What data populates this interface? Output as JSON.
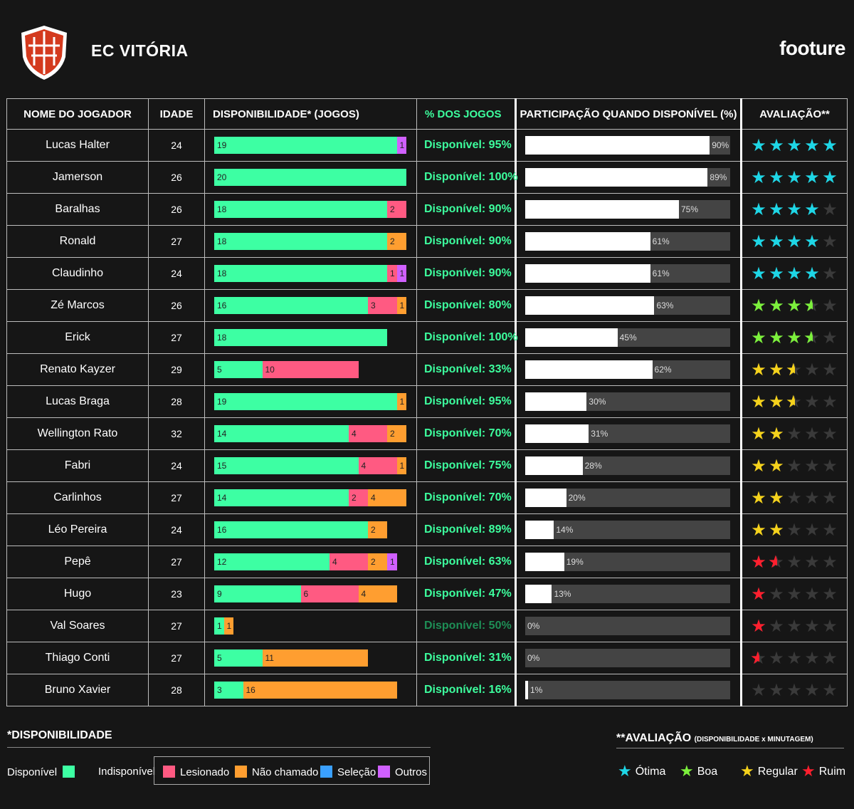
{
  "header": {
    "team": "EC VITÓRIA",
    "brand": "footure"
  },
  "columns": [
    "NOME DO JOGADOR",
    "IDADE",
    "DISPONIBILIDADE* (JOGOS)",
    "% DOS JOGOS",
    "PARTICIPAÇÃO QUANDO DISPONÍVEL (%)",
    "AVALIAÇÃO**"
  ],
  "colors": {
    "available": "#3dffa3",
    "injured": "#ff5a82",
    "not_called": "#ff9e30",
    "national_team": "#3aa0ff",
    "other": "#d060ff",
    "pct_high": "#3dff9e",
    "pct_low": "#1e8f56",
    "star_otima": "#1ed6e6",
    "star_boa": "#7cf03c",
    "star_regular": "#f5d21c",
    "star_ruim": "#ff1f2e",
    "star_empty": "#3a3a3a"
  },
  "chart_data": {
    "type": "table",
    "max_games": 20,
    "players": [
      {
        "name": "Lucas Halter",
        "age": "24",
        "segments": [
          {
            "type": "available",
            "value": 19
          },
          {
            "type": "other",
            "value": 1
          }
        ],
        "pct_label": "Disponível: 95%",
        "participation": 90,
        "participation_label": "90%",
        "rating": 5,
        "rating_class": "otima"
      },
      {
        "name": "Jamerson",
        "age": "26",
        "segments": [
          {
            "type": "available",
            "value": 20
          }
        ],
        "pct_label": "Disponível: 100%",
        "participation": 89,
        "participation_label": "89%",
        "rating": 5,
        "rating_class": "otima"
      },
      {
        "name": "Baralhas",
        "age": "26",
        "segments": [
          {
            "type": "available",
            "value": 18
          },
          {
            "type": "injured",
            "value": 2
          }
        ],
        "pct_label": "Disponível: 90%",
        "participation": 75,
        "participation_label": "75%",
        "rating": 4,
        "rating_class": "otima"
      },
      {
        "name": "Ronald",
        "age": "27",
        "segments": [
          {
            "type": "available",
            "value": 18
          },
          {
            "type": "not_called",
            "value": 2
          }
        ],
        "pct_label": "Disponível: 90%",
        "participation": 61,
        "participation_label": "61%",
        "rating": 4,
        "rating_class": "otima"
      },
      {
        "name": "Claudinho",
        "age": "24",
        "segments": [
          {
            "type": "available",
            "value": 18
          },
          {
            "type": "injured",
            "value": 1
          },
          {
            "type": "other",
            "value": 1
          }
        ],
        "pct_label": "Disponível: 90%",
        "participation": 61,
        "participation_label": "61%",
        "rating": 4,
        "rating_class": "otima"
      },
      {
        "name": "Zé Marcos",
        "age": "26",
        "segments": [
          {
            "type": "available",
            "value": 16
          },
          {
            "type": "injured",
            "value": 3
          },
          {
            "type": "not_called",
            "value": 1
          }
        ],
        "pct_label": "Disponível: 80%",
        "participation": 63,
        "participation_label": "63%",
        "rating": 3.5,
        "rating_class": "boa"
      },
      {
        "name": "Erick",
        "age": "27",
        "segments": [
          {
            "type": "available",
            "value": 18
          }
        ],
        "pct_label": "Disponível: 100%",
        "participation": 45,
        "participation_label": "45%",
        "rating": 3.5,
        "rating_class": "boa"
      },
      {
        "name": "Renato Kayzer",
        "age": "29",
        "segments": [
          {
            "type": "available",
            "value": 5
          },
          {
            "type": "injured",
            "value": 10
          }
        ],
        "pct_label": "Disponível: 33%",
        "participation": 62,
        "participation_label": "62%",
        "rating": 2.5,
        "rating_class": "regular"
      },
      {
        "name": "Lucas Braga",
        "age": "28",
        "segments": [
          {
            "type": "available",
            "value": 19
          },
          {
            "type": "not_called",
            "value": 1
          }
        ],
        "pct_label": "Disponível: 95%",
        "participation": 30,
        "participation_label": "30%",
        "rating": 2.5,
        "rating_class": "regular"
      },
      {
        "name": "Wellington Rato",
        "age": "32",
        "segments": [
          {
            "type": "available",
            "value": 14
          },
          {
            "type": "injured",
            "value": 4
          },
          {
            "type": "not_called",
            "value": 2
          }
        ],
        "pct_label": "Disponível: 70%",
        "participation": 31,
        "participation_label": "31%",
        "rating": 2,
        "rating_class": "regular"
      },
      {
        "name": "Fabri",
        "age": "24",
        "segments": [
          {
            "type": "available",
            "value": 15
          },
          {
            "type": "injured",
            "value": 4
          },
          {
            "type": "not_called",
            "value": 1
          }
        ],
        "pct_label": "Disponível: 75%",
        "participation": 28,
        "participation_label": "28%",
        "rating": 2,
        "rating_class": "regular"
      },
      {
        "name": "Carlinhos",
        "age": "27",
        "segments": [
          {
            "type": "available",
            "value": 14
          },
          {
            "type": "injured",
            "value": 2
          },
          {
            "type": "not_called",
            "value": 4
          }
        ],
        "pct_label": "Disponível: 70%",
        "participation": 20,
        "participation_label": "20%",
        "rating": 2,
        "rating_class": "regular"
      },
      {
        "name": "Léo Pereira",
        "age": "24",
        "segments": [
          {
            "type": "available",
            "value": 16
          },
          {
            "type": "not_called",
            "value": 2
          }
        ],
        "pct_label": "Disponível: 89%",
        "participation": 14,
        "participation_label": "14%",
        "rating": 2,
        "rating_class": "regular"
      },
      {
        "name": "Pepê",
        "age": "27",
        "segments": [
          {
            "type": "available",
            "value": 12
          },
          {
            "type": "injured",
            "value": 4
          },
          {
            "type": "not_called",
            "value": 2
          },
          {
            "type": "other",
            "value": 1
          }
        ],
        "pct_label": "Disponível: 63%",
        "participation": 19,
        "participation_label": "19%",
        "rating": 1.5,
        "rating_class": "ruim"
      },
      {
        "name": "Hugo",
        "age": "23",
        "segments": [
          {
            "type": "available",
            "value": 9
          },
          {
            "type": "injured",
            "value": 6
          },
          {
            "type": "not_called",
            "value": 4
          }
        ],
        "pct_label": "Disponível: 47%",
        "participation": 13,
        "participation_label": "13%",
        "rating": 1,
        "rating_class": "ruim"
      },
      {
        "name": "Val Soares",
        "age": "27",
        "segments": [
          {
            "type": "available",
            "value": 1
          },
          {
            "type": "not_called",
            "value": 1
          }
        ],
        "pct_label": "Disponível: 50%",
        "participation": 0,
        "participation_label": "0%",
        "rating": 1,
        "rating_class": "ruim"
      },
      {
        "name": "Thiago Conti",
        "age": "27",
        "segments": [
          {
            "type": "available",
            "value": 5
          },
          {
            "type": "not_called",
            "value": 11
          }
        ],
        "pct_label": "Disponível: 31%",
        "participation": 0,
        "participation_label": "0%",
        "rating": 0.5,
        "rating_class": "ruim"
      },
      {
        "name": "Bruno Xavier",
        "age": "28",
        "segments": [
          {
            "type": "available",
            "value": 3
          },
          {
            "type": "not_called",
            "value": 16
          }
        ],
        "pct_label": "Disponível: 16%",
        "participation": 1,
        "participation_label": "1%",
        "rating": 0,
        "rating_class": "ruim"
      }
    ]
  },
  "legend": {
    "title": "*DISPONIBILIDADE",
    "available": "Disponível",
    "unavailable": "Indisponível",
    "injured": "Lesionado",
    "not_called": "Não chamado",
    "national_team": "Seleção",
    "other": "Outros"
  },
  "rating_legend": {
    "title": "**AVALIAÇÃO",
    "subtitle": "(DISPONIBILIDADE x MINUTAGEM)",
    "otima": "Ótima",
    "boa": "Boa",
    "regular": "Regular",
    "ruim": "Ruim"
  }
}
